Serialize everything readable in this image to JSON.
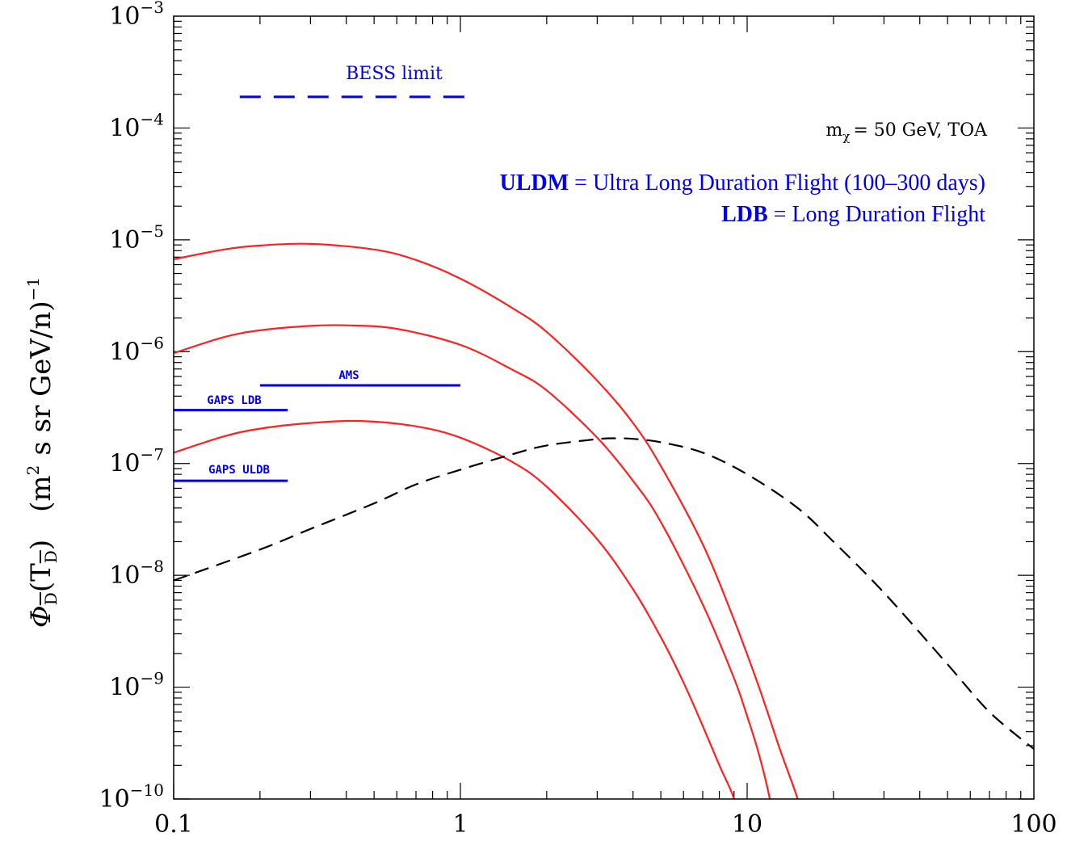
{
  "chart_data": {
    "type": "line",
    "title": "",
    "xlabel": "",
    "ylabel": "Φ",
    "ylabel_subscript": "D",
    "ylabel_arg": "(T",
    "ylabel_arg_close": ")",
    "ylabel_units_open": "(m",
    "ylabel_units_sq": "2",
    "ylabel_units_rest": "s  sr  GeV/n)",
    "ylabel_units_exp": "−1",
    "x_scale": "log",
    "y_scale": "log",
    "xlim": [
      0.1,
      100
    ],
    "ylim": [
      1e-10,
      0.001
    ],
    "x_ticks": [
      {
        "value": 0.1,
        "label": "0.1"
      },
      {
        "value": 1,
        "label": "1"
      },
      {
        "value": 10,
        "label": "10"
      },
      {
        "value": 100,
        "label": "100"
      }
    ],
    "y_ticks": [
      {
        "value": 0.001,
        "base": "10",
        "exp": "−3"
      },
      {
        "value": 0.0001,
        "base": "10",
        "exp": "−4"
      },
      {
        "value": 1e-05,
        "base": "10",
        "exp": "−5"
      },
      {
        "value": 1e-06,
        "base": "10",
        "exp": "−6"
      },
      {
        "value": 1e-07,
        "base": "10",
        "exp": "−7"
      },
      {
        "value": 1e-08,
        "base": "10",
        "exp": "−8"
      },
      {
        "value": 1e-09,
        "base": "10",
        "exp": "−9"
      },
      {
        "value": 1e-10,
        "base": "10",
        "exp": "−10"
      }
    ],
    "grid": false,
    "series": [
      {
        "style": "solid",
        "color": "#ff2020",
        "x": [
          0.1,
          0.15,
          0.2,
          0.3,
          0.5,
          0.7,
          1.0,
          1.5,
          2.0,
          3.0,
          4.0,
          5.0,
          7.0,
          9.0,
          11.0,
          13.0,
          15.0,
          16.0
        ],
        "y": [
          6.7e-06,
          8.2e-06,
          8.9e-06,
          9.2e-06,
          8.2e-06,
          6.6e-06,
          4.5e-06,
          2.5e-06,
          1.5e-06,
          5.5e-07,
          2.3e-07,
          9.5e-08,
          1.9e-08,
          4e-09,
          1e-09,
          2.8e-10,
          1e-10,
          5e-11
        ]
      },
      {
        "style": "solid",
        "color": "#ff2020",
        "x": [
          0.1,
          0.15,
          0.2,
          0.3,
          0.4,
          0.6,
          1.0,
          1.5,
          2.0,
          3.0,
          4.0,
          5.0,
          7.0,
          9.0,
          10.0,
          11.0,
          12.0,
          12.5
        ],
        "y": [
          9.7e-07,
          1.35e-06,
          1.55e-06,
          1.7e-06,
          1.72e-06,
          1.6e-06,
          1.15e-06,
          7e-07,
          4.5e-07,
          1.7e-07,
          7e-08,
          3e-08,
          5.5e-09,
          1.2e-09,
          5.5e-10,
          2.5e-10,
          1e-10,
          5e-11
        ]
      },
      {
        "style": "solid",
        "color": "#ff2020",
        "x": [
          0.1,
          0.15,
          0.2,
          0.3,
          0.45,
          0.7,
          1.0,
          1.5,
          2.0,
          3.0,
          4.0,
          5.0,
          6.0,
          7.0,
          8.0,
          9.0,
          9.5
        ],
        "y": [
          1.25e-07,
          1.75e-07,
          2.05e-07,
          2.3e-07,
          2.4e-07,
          2.15e-07,
          1.7e-07,
          1.05e-07,
          6.2e-08,
          2.1e-08,
          7.5e-09,
          2.8e-09,
          1.1e-09,
          4.5e-10,
          2e-10,
          1e-10,
          5e-11
        ]
      },
      {
        "style": "dashed",
        "color": "#000000",
        "x": [
          0.1,
          0.2,
          0.3,
          0.5,
          0.7,
          1.0,
          1.5,
          2.0,
          3.0,
          3.5,
          4.0,
          5.0,
          7.0,
          10.0,
          15.0,
          20.0,
          30.0,
          50.0,
          70.0,
          100.0
        ],
        "y": [
          9e-09,
          1.7e-08,
          2.6e-08,
          4.4e-08,
          6.5e-08,
          8.8e-08,
          1.2e-07,
          1.45e-07,
          1.65e-07,
          1.68e-07,
          1.66e-07,
          1.55e-07,
          1.25e-07,
          8e-08,
          4e-08,
          2e-08,
          7e-09,
          1.6e-09,
          6e-10,
          2.8e-10
        ]
      }
    ],
    "limits": [
      {
        "name": "BESS limit",
        "style": "dashed",
        "color": "#0000ee",
        "x_start": 0.17,
        "x_end": 1.1,
        "y": 0.00019
      },
      {
        "name": "AMS",
        "style": "solid",
        "color": "#0000ee",
        "x_start": 0.2,
        "x_end": 1.0,
        "y": 5e-07
      },
      {
        "name": "GAPS LDB",
        "style": "solid",
        "color": "#0000ee",
        "x_start": 0.1,
        "x_end": 0.25,
        "y": 3e-07
      },
      {
        "name": "GAPS ULDB",
        "style": "solid",
        "color": "#0000ee",
        "x_start": 0.1,
        "x_end": 0.25,
        "y": 7e-08
      }
    ],
    "annotations": {
      "mass_prefix": "m",
      "mass_sub": "χ",
      "mass_rest": "= 50 GeV, TOA",
      "uldm_bold": "ULDM",
      "uldm_rest": " = Ultra Long Duration Flight (100–300 days)",
      "ldb_bold": "LDB",
      "ldb_rest": " = Long Duration Flight"
    }
  }
}
